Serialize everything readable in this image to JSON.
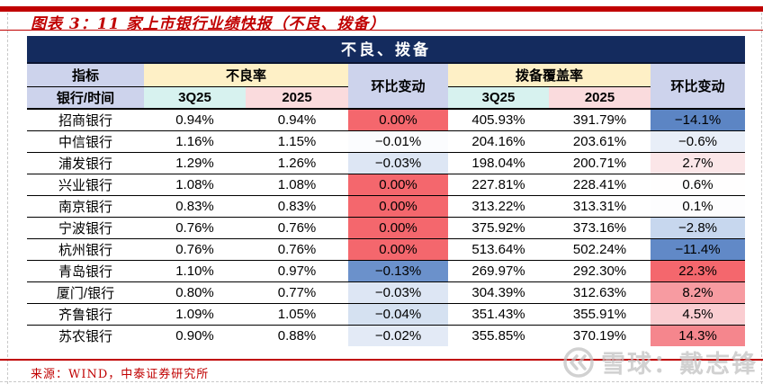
{
  "page": {
    "title": "图表 3：11 家上市银行业绩快报（不良、拨备）",
    "source_note": "来源：WIND，中泰证券研究所",
    "watermark": "雪球：戴志锋",
    "accent_red": "#c00000",
    "navy": "#142b5e"
  },
  "table": {
    "caption": "不良、拨备",
    "header": {
      "indicator": "指标",
      "bank_time": "银行/时间",
      "npl_ratio": "不良率",
      "coverage_ratio": "拨备覆盖率",
      "qoq_change": "环比变动",
      "period1": "3Q25",
      "period2": "2025"
    },
    "heat_colors": {
      "strong_red": "#f4676d",
      "strong_blue": "#5c85c4",
      "note": "环比变动 cells are heat-mapped: red = increase, blue = decrease"
    },
    "rows": [
      {
        "bank": "招商银行",
        "npl_3q25": "0.94%",
        "npl_2025": "0.94%",
        "npl_qoq": "0.00%",
        "npl_qoq_color": "#f4676d",
        "cov_3q25": "405.93%",
        "cov_2025": "391.79%",
        "cov_qoq": "−14.1%",
        "cov_qoq_color": "#5c85c4"
      },
      {
        "bank": "中信银行",
        "npl_3q25": "1.16%",
        "npl_2025": "1.15%",
        "npl_qoq": "−0.01%",
        "npl_qoq_color": "#fbfcfe",
        "cov_3q25": "204.16%",
        "cov_2025": "203.61%",
        "cov_qoq": "−0.6%",
        "cov_qoq_color": "#e8eef8"
      },
      {
        "bank": "浦发银行",
        "npl_3q25": "1.29%",
        "npl_2025": "1.26%",
        "npl_qoq": "−0.03%",
        "npl_qoq_color": "#dde6f4",
        "cov_3q25": "198.04%",
        "cov_2025": "200.71%",
        "cov_qoq": "2.7%",
        "cov_qoq_color": "#fbe6e8"
      },
      {
        "bank": "兴业银行",
        "npl_3q25": "1.08%",
        "npl_2025": "1.08%",
        "npl_qoq": "0.00%",
        "npl_qoq_color": "#f4676d",
        "cov_3q25": "227.81%",
        "cov_2025": "228.41%",
        "cov_qoq": "0.6%",
        "cov_qoq_color": "#fffefe"
      },
      {
        "bank": "南京银行",
        "npl_3q25": "0.83%",
        "npl_2025": "0.83%",
        "npl_qoq": "0.00%",
        "npl_qoq_color": "#f4676d",
        "cov_3q25": "313.22%",
        "cov_2025": "313.31%",
        "cov_qoq": "0.1%",
        "cov_qoq_color": "#fdfdfe"
      },
      {
        "bank": "宁波银行",
        "npl_3q25": "0.76%",
        "npl_2025": "0.76%",
        "npl_qoq": "0.00%",
        "npl_qoq_color": "#f4676d",
        "cov_3q25": "375.92%",
        "cov_2025": "373.16%",
        "cov_qoq": "−2.8%",
        "cov_qoq_color": "#c7d7ee"
      },
      {
        "bank": "杭州银行",
        "npl_3q25": "0.76%",
        "npl_2025": "0.76%",
        "npl_qoq": "0.00%",
        "npl_qoq_color": "#f4676d",
        "cov_3q25": "513.64%",
        "cov_2025": "502.24%",
        "cov_qoq": "−11.4%",
        "cov_qoq_color": "#6189c7"
      },
      {
        "bank": "青岛银行",
        "npl_3q25": "1.10%",
        "npl_2025": "0.97%",
        "npl_qoq": "−0.13%",
        "npl_qoq_color": "#6b91cb",
        "cov_3q25": "269.97%",
        "cov_2025": "292.30%",
        "cov_qoq": "22.3%",
        "cov_qoq_color": "#f4676d"
      },
      {
        "bank": "厦门/银行",
        "npl_3q25": "0.80%",
        "npl_2025": "0.77%",
        "npl_qoq": "−0.03%",
        "npl_qoq_color": "#dde6f4",
        "cov_3q25": "304.39%",
        "cov_2025": "312.63%",
        "cov_qoq": "8.2%",
        "cov_qoq_color": "#f79ba1"
      },
      {
        "bank": "齐鲁银行",
        "npl_3q25": "1.09%",
        "npl_2025": "1.05%",
        "npl_qoq": "−0.04%",
        "npl_qoq_color": "#d5e1f1",
        "cov_3q25": "351.43%",
        "cov_2025": "355.91%",
        "cov_qoq": "4.5%",
        "cov_qoq_color": "#facdd1"
      },
      {
        "bank": "苏农银行",
        "npl_3q25": "0.90%",
        "npl_2025": "0.88%",
        "npl_qoq": "−0.02%",
        "npl_qoq_color": "#e3eaf6",
        "cov_3q25": "355.85%",
        "cov_2025": "370.19%",
        "cov_qoq": "14.3%",
        "cov_qoq_color": "#f5868d"
      }
    ]
  }
}
